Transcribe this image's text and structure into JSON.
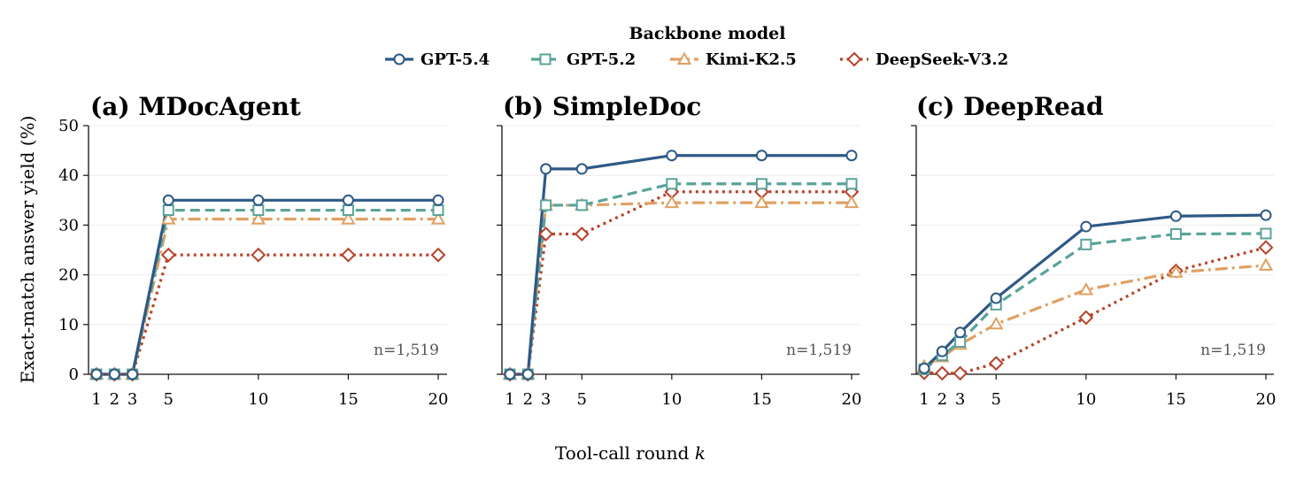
{
  "legend": {
    "title": "Backbone model"
  },
  "figure": {
    "xlabel_text": "Tool-call round",
    "xlabel_var": "k",
    "ylabel": "Exact-match answer yield (%)"
  },
  "chart_data": [
    {
      "type": "line",
      "title": "(a) MDocAgent",
      "xlabel": "Tool-call round k",
      "ylabel": "Exact-match answer yield (%)",
      "x": [
        1,
        2,
        3,
        5,
        10,
        15,
        20
      ],
      "xticks": [
        1,
        2,
        3,
        5,
        10,
        15,
        20
      ],
      "yticks": [
        0,
        10,
        20,
        30,
        40,
        50
      ],
      "ylim": [
        0,
        50
      ],
      "annotation": "n=1,519",
      "grid": "horizontal",
      "series": [
        {
          "name": "GPT-5.4",
          "values": [
            0,
            0,
            0,
            35.0,
            35.0,
            35.0,
            35.0
          ],
          "color": "#2e5985",
          "dash": "solid",
          "marker": "circle"
        },
        {
          "name": "GPT-5.2",
          "values": [
            0,
            0,
            0,
            33.0,
            33.0,
            33.0,
            33.0
          ],
          "color": "#5aa39a",
          "dash": "dashed",
          "marker": "square"
        },
        {
          "name": "Kimi-K2.5",
          "values": [
            0,
            0,
            0,
            31.2,
            31.2,
            31.2,
            31.2
          ],
          "color": "#e0a063",
          "dash": "dashdot",
          "marker": "triangle"
        },
        {
          "name": "DeepSeek-V3.2",
          "values": [
            0,
            0,
            0,
            24.0,
            24.0,
            24.0,
            24.0
          ],
          "color": "#b5432b",
          "dash": "dotted",
          "marker": "diamond"
        }
      ]
    },
    {
      "type": "line",
      "title": "(b) SimpleDoc",
      "xlabel": "Tool-call round k",
      "ylabel": "Exact-match answer yield (%)",
      "x": [
        1,
        2,
        3,
        5,
        10,
        15,
        20
      ],
      "xticks": [
        1,
        2,
        3,
        5,
        10,
        15,
        20
      ],
      "yticks": [
        0,
        10,
        20,
        30,
        40,
        50
      ],
      "ylim": [
        0,
        50
      ],
      "annotation": "n=1,519",
      "grid": "horizontal",
      "series": [
        {
          "name": "GPT-5.4",
          "values": [
            0,
            0,
            41.3,
            41.3,
            44.0,
            44.0,
            44.0
          ],
          "color": "#2e5985",
          "dash": "solid",
          "marker": "circle"
        },
        {
          "name": "GPT-5.2",
          "values": [
            0,
            0,
            34.0,
            34.0,
            38.3,
            38.3,
            38.3
          ],
          "color": "#5aa39a",
          "dash": "dashed",
          "marker": "square"
        },
        {
          "name": "Kimi-K2.5",
          "values": [
            0,
            0,
            34.0,
            34.0,
            34.5,
            34.5,
            34.5
          ],
          "color": "#e0a063",
          "dash": "dashdot",
          "marker": "triangle"
        },
        {
          "name": "DeepSeek-V3.2",
          "values": [
            0,
            0,
            28.2,
            28.2,
            36.7,
            36.7,
            36.7
          ],
          "color": "#b5432b",
          "dash": "dotted",
          "marker": "diamond"
        }
      ]
    },
    {
      "type": "line",
      "title": "(c) DeepRead",
      "xlabel": "Tool-call round k",
      "ylabel": "Exact-match answer yield (%)",
      "x": [
        1,
        2,
        3,
        5,
        10,
        15,
        20
      ],
      "xticks": [
        1,
        2,
        3,
        5,
        10,
        15,
        20
      ],
      "yticks": [
        0,
        10,
        20,
        30,
        40,
        50
      ],
      "ylim": [
        0,
        50
      ],
      "annotation": "n=1,519",
      "grid": "horizontal",
      "series": [
        {
          "name": "GPT-5.4",
          "values": [
            1.2,
            4.6,
            8.4,
            15.3,
            29.7,
            31.8,
            32.0
          ],
          "color": "#2e5985",
          "dash": "solid",
          "marker": "circle"
        },
        {
          "name": "GPT-5.2",
          "values": [
            1.0,
            3.8,
            6.5,
            14.0,
            26.1,
            28.2,
            28.3
          ],
          "color": "#5aa39a",
          "dash": "dashed",
          "marker": "square"
        },
        {
          "name": "Kimi-K2.5",
          "values": [
            1.6,
            3.5,
            6.0,
            10.1,
            17.0,
            20.5,
            21.9
          ],
          "color": "#e0a063",
          "dash": "dashdot",
          "marker": "triangle"
        },
        {
          "name": "DeepSeek-V3.2",
          "values": [
            0.3,
            0.2,
            0.2,
            2.2,
            11.4,
            20.8,
            25.5
          ],
          "color": "#b5432b",
          "dash": "dotted",
          "marker": "diamond"
        }
      ]
    }
  ]
}
